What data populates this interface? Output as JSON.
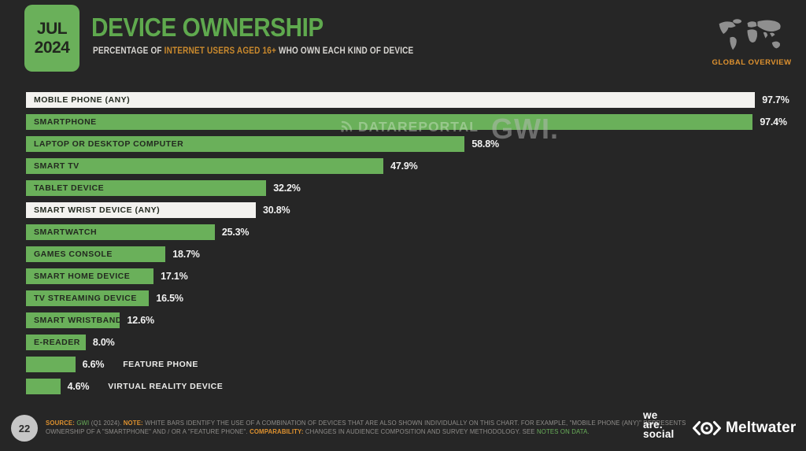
{
  "header": {
    "date_line1": "JUL",
    "date_line2": "2024",
    "title": "DEVICE OWNERSHIP",
    "subtitle_prefix": "PERCENTAGE OF ",
    "subtitle_highlight": "INTERNET USERS AGED 16+",
    "subtitle_suffix": " WHO OWN EACH KIND OF DEVICE",
    "region_label": "GLOBAL OVERVIEW"
  },
  "watermark": {
    "datareportal": "DATAREPORTAL",
    "gwi": "GWI."
  },
  "chart_data": {
    "type": "bar",
    "orientation": "horizontal",
    "title": "DEVICE OWNERSHIP",
    "xlabel": "",
    "ylabel": "",
    "unit": "%",
    "xlim": [
      0,
      100
    ],
    "grid": false,
    "legend": false,
    "categories": [
      "MOBILE PHONE (ANY)",
      "SMARTPHONE",
      "LAPTOP OR DESKTOP COMPUTER",
      "SMART TV",
      "TABLET DEVICE",
      "SMART WRIST DEVICE (ANY)",
      "SMARTWATCH",
      "GAMES CONSOLE",
      "SMART HOME DEVICE",
      "TV STREAMING DEVICE",
      "SMART WRISTBAND",
      "E-READER",
      "FEATURE PHONE",
      "VIRTUAL REALITY DEVICE"
    ],
    "values": [
      97.7,
      97.4,
      58.8,
      47.9,
      32.2,
      30.8,
      25.3,
      18.7,
      17.1,
      16.5,
      12.6,
      8.0,
      6.6,
      4.6
    ],
    "value_labels": [
      "97.7%",
      "97.4%",
      "58.8%",
      "47.9%",
      "32.2%",
      "30.8%",
      "25.3%",
      "18.7%",
      "17.1%",
      "16.5%",
      "12.6%",
      "8.0%",
      "6.6%",
      "4.6%"
    ],
    "bar_colors": [
      "white",
      "green",
      "green",
      "green",
      "green",
      "white",
      "green",
      "green",
      "green",
      "green",
      "green",
      "green",
      "green",
      "green"
    ],
    "label_placement": [
      "inside",
      "inside",
      "inside",
      "inside",
      "inside",
      "inside",
      "inside",
      "inside",
      "inside",
      "inside",
      "inside",
      "inside",
      "outside",
      "outside"
    ]
  },
  "footer": {
    "page_number": "22",
    "note_lines": [
      [
        {
          "text": "SOURCE:",
          "style": "orange"
        },
        {
          "text": " GWI",
          "style": "green"
        },
        {
          "text": " (Q1 2024). ",
          "style": ""
        },
        {
          "text": "NOTE:",
          "style": "orange"
        },
        {
          "text": " WHITE BARS IDENTIFY THE USE OF A COMBINATION OF DEVICES THAT ARE ALSO SHOWN INDIVIDUALLY ON THIS CHART. FOR EXAMPLE, \"MOBILE PHONE (ANY)\" REPRESENTS",
          "style": ""
        }
      ],
      [
        {
          "text": "OWNERSHIP OF A \"SMARTPHONE\" AND / OR A \"FEATURE PHONE\". ",
          "style": ""
        },
        {
          "text": "COMPARABILITY:",
          "style": "orange"
        },
        {
          "text": " CHANGES IN AUDIENCE COMPOSITION AND SURVEY METHODOLOGY. SEE ",
          "style": ""
        },
        {
          "text": "NOTES ON DATA.",
          "style": "green",
          "name": "notes-on-data-link",
          "interactable": true
        }
      ]
    ],
    "wearesocial_lines": [
      "we",
      "are.",
      "social"
    ],
    "meltwater_label": "Meltwater"
  },
  "colors": {
    "background": "#262626",
    "bar_green": "#6ab05a",
    "bar_white": "#f3f2ef",
    "accent_orange": "#df922f",
    "title_green": "#5fa94e",
    "footer_gray": "#8f8d8a"
  }
}
